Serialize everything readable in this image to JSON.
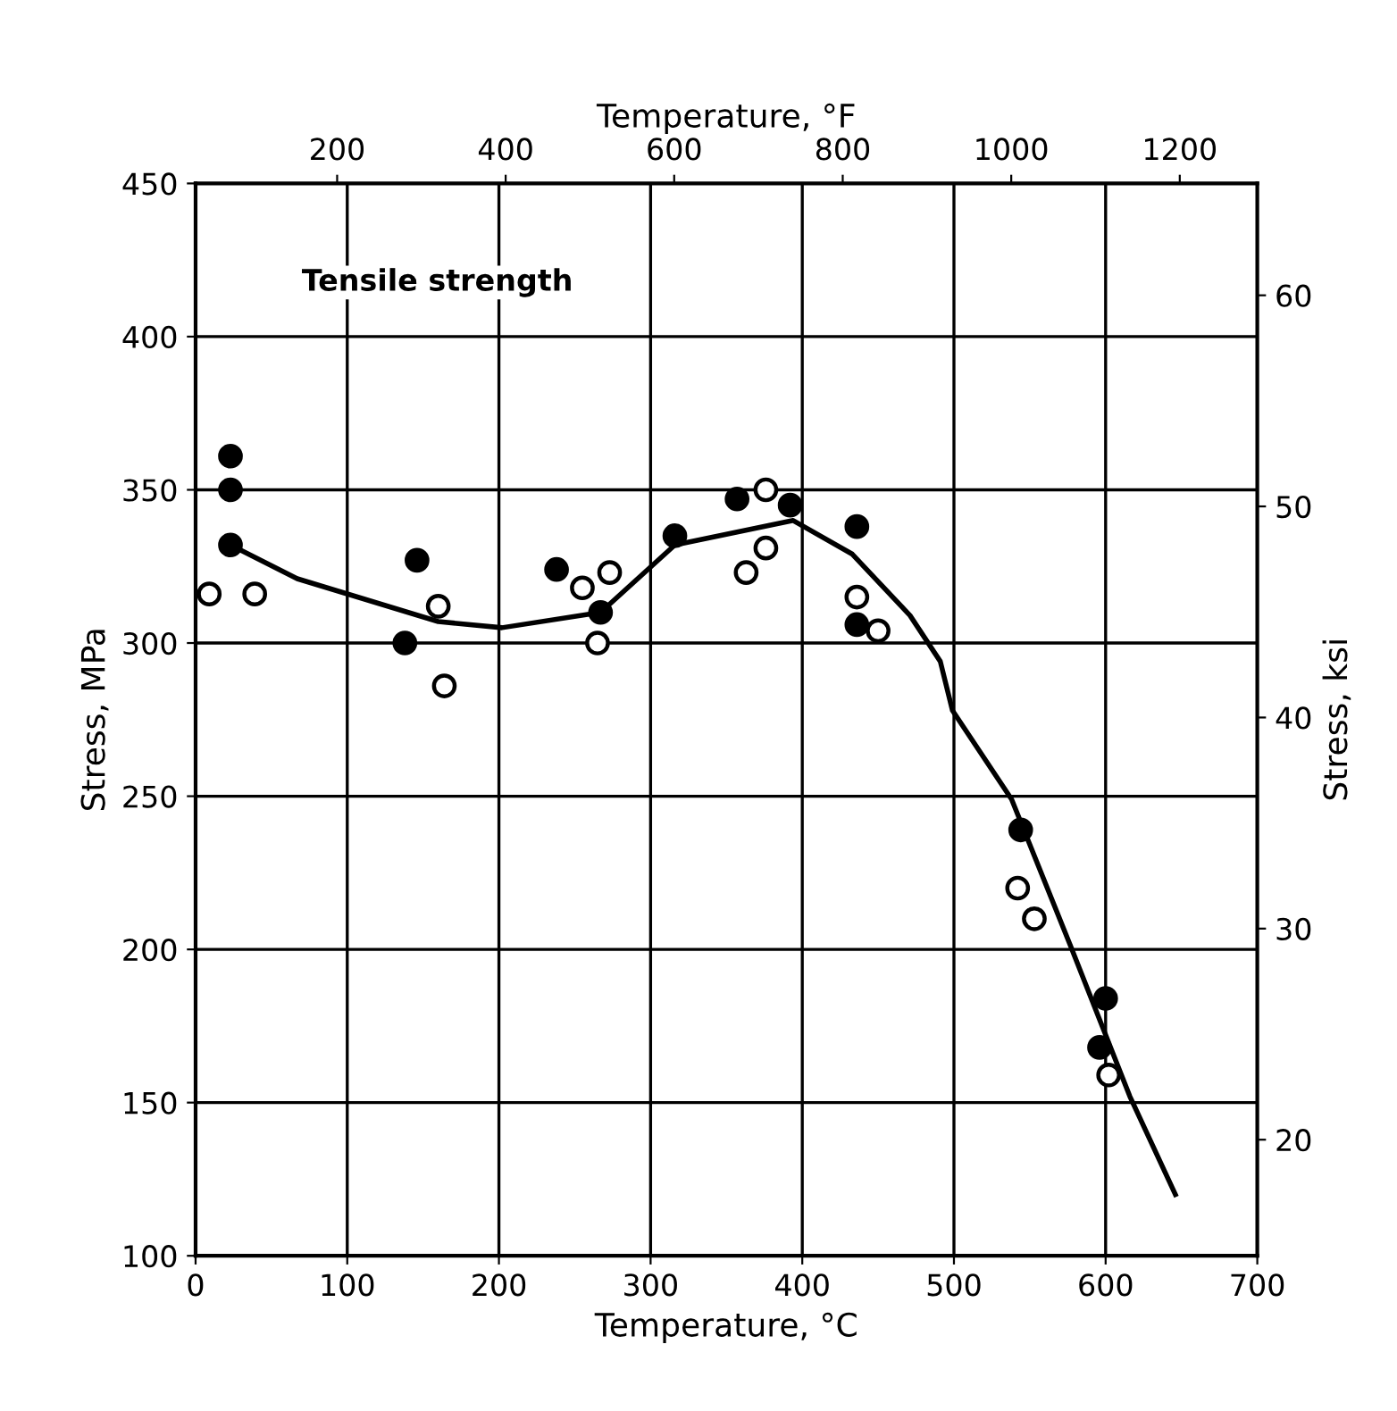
{
  "chart_data": {
    "type": "scatter",
    "xlabel": "Temperature, °C",
    "ylabel": "Stress, MPa",
    "y2label": "Stress, ksi",
    "x2label": "Temperature, °F",
    "annotations": [
      "Tensile strength"
    ],
    "xlim": [
      0,
      700
    ],
    "xticks": [
      0,
      100,
      200,
      300,
      400,
      500,
      600,
      700
    ],
    "ylim": [
      100,
      450
    ],
    "yticks": [
      100,
      150,
      200,
      250,
      300,
      350,
      400,
      450
    ],
    "x2lim": [
      32,
      1292
    ],
    "x2ticks": [
      200,
      400,
      600,
      800,
      1000,
      1200
    ],
    "y2lim": [
      14.5,
      65.3
    ],
    "y2ticks": [
      20,
      30,
      40,
      50,
      60
    ],
    "grid": true,
    "legend": false,
    "series": [
      {
        "marker": "circle",
        "color": "#000000",
        "x": [
          23,
          23,
          23,
          146,
          138,
          238,
          267,
          316,
          357,
          392,
          436,
          436,
          544,
          600,
          596
        ],
        "values": [
          361,
          350,
          332,
          327,
          300,
          324,
          310,
          335,
          347,
          345,
          338,
          306,
          239,
          184,
          168
        ]
      },
      {
        "marker": "circle",
        "color": "#ffffff",
        "x": [
          9,
          39,
          160,
          164,
          255,
          273,
          265,
          376,
          376,
          363,
          436,
          450,
          542,
          553,
          602
        ],
        "values": [
          316,
          316,
          312,
          286,
          318,
          323,
          300,
          350,
          331,
          323,
          315,
          304,
          220,
          210,
          159
        ]
      },
      {
        "type": "line",
        "marker": "none",
        "color": "#000000",
        "x": [
          23,
          67,
          160,
          202,
          267,
          316,
          394,
          433,
          471,
          491,
          499,
          538,
          577,
          616,
          646
        ],
        "values": [
          332,
          321,
          307,
          305,
          310,
          332,
          340,
          329,
          309,
          294,
          278,
          249,
          201,
          152,
          120
        ]
      }
    ]
  }
}
